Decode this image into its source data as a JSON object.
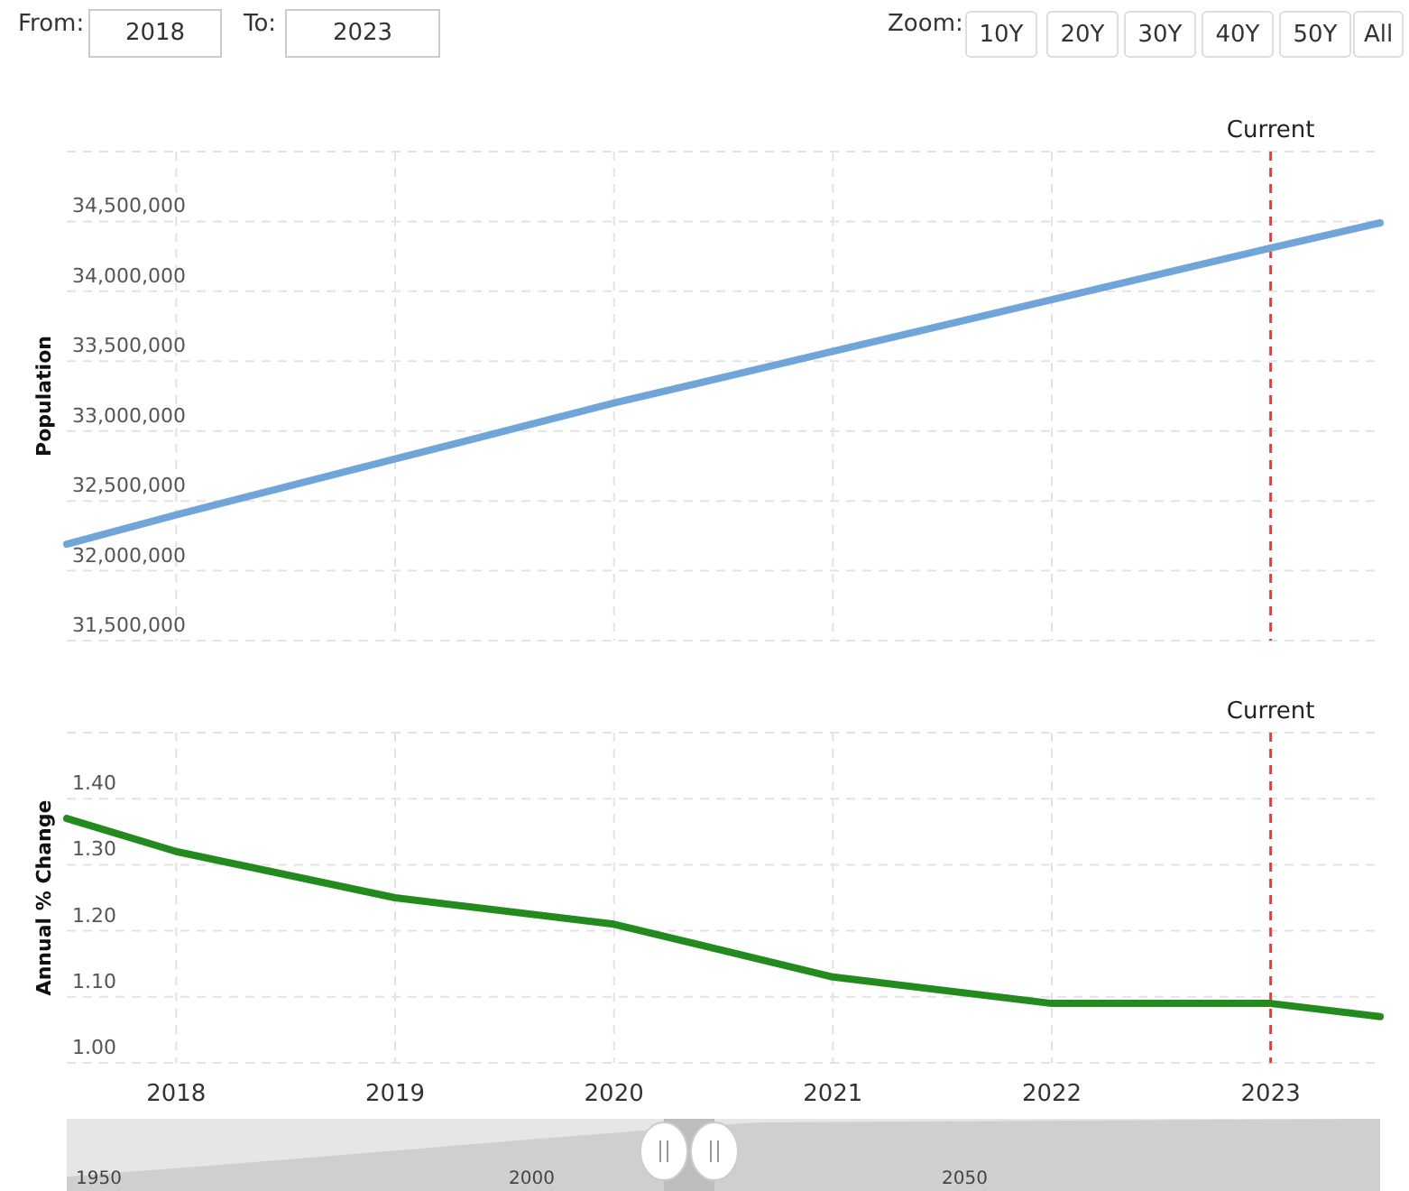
{
  "chart_data": [
    {
      "type": "line",
      "ylabel": "Population",
      "annotations": [
        "From:",
        "2018",
        "To:",
        "2023",
        "Zoom:",
        "10Y",
        "20Y",
        "30Y",
        "40Y",
        "50Y",
        "All"
      ],
      "x": [
        2017.5,
        2018,
        2019,
        2020,
        2021,
        2022,
        2023,
        2023.5
      ],
      "series": [
        {
          "color": "#6fa5d8",
          "values": [
            32190000,
            32400000,
            32800000,
            33200000,
            33570000,
            33940000,
            34310000,
            34490000
          ]
        }
      ],
      "xlim": [
        2017.5,
        2023.5
      ],
      "xticks": [
        2018,
        2019,
        2020,
        2021,
        2022,
        2023
      ],
      "ylim": [
        31500000,
        35000000
      ],
      "yticks": [
        {
          "value": 31500000,
          "label": "31,500,000"
        },
        {
          "value": 32000000,
          "label": "32,000,000"
        },
        {
          "value": 32500000,
          "label": "32,500,000"
        },
        {
          "value": 33000000,
          "label": "33,000,000"
        },
        {
          "value": 33500000,
          "label": "33,500,000"
        },
        {
          "value": 34000000,
          "label": "34,000,000"
        },
        {
          "value": 34500000,
          "label": "34,500,000"
        },
        {
          "value": 35000000,
          "label": null
        }
      ],
      "grid": true,
      "tick_labels": "y",
      "line_style": "solid",
      "ref_lines": [
        {
          "axis": "x",
          "value": 2023,
          "label": "Current",
          "color": "#e0403a",
          "line_style": "dashed"
        }
      ]
    },
    {
      "type": "line",
      "ylabel": "Annual % Change",
      "x": [
        2017.5,
        2018,
        2019,
        2020,
        2021,
        2022,
        2023,
        2023.5
      ],
      "series": [
        {
          "color": "#238a1e",
          "values": [
            1.37,
            1.32,
            1.25,
            1.21,
            1.13,
            1.09,
            1.09,
            1.07
          ]
        }
      ],
      "xlim": [
        2017.5,
        2023.5
      ],
      "xticks": [
        2018,
        2019,
        2020,
        2021,
        2022,
        2023
      ],
      "ylim": [
        1.0,
        1.5
      ],
      "yticks": [
        {
          "value": 1.0,
          "label": "1.00"
        },
        {
          "value": 1.1,
          "label": "1.10"
        },
        {
          "value": 1.2,
          "label": "1.20"
        },
        {
          "value": 1.3,
          "label": "1.30"
        },
        {
          "value": 1.4,
          "label": "1.40"
        },
        {
          "value": 1.5,
          "label": null
        }
      ],
      "grid": true,
      "line_style": "solid",
      "annotations": [
        "1950",
        "2000",
        "2050"
      ],
      "ref_lines": [
        {
          "axis": "x",
          "value": 2023,
          "label": "Current",
          "color": "#e0403a",
          "line_style": "dashed"
        }
      ]
    }
  ]
}
